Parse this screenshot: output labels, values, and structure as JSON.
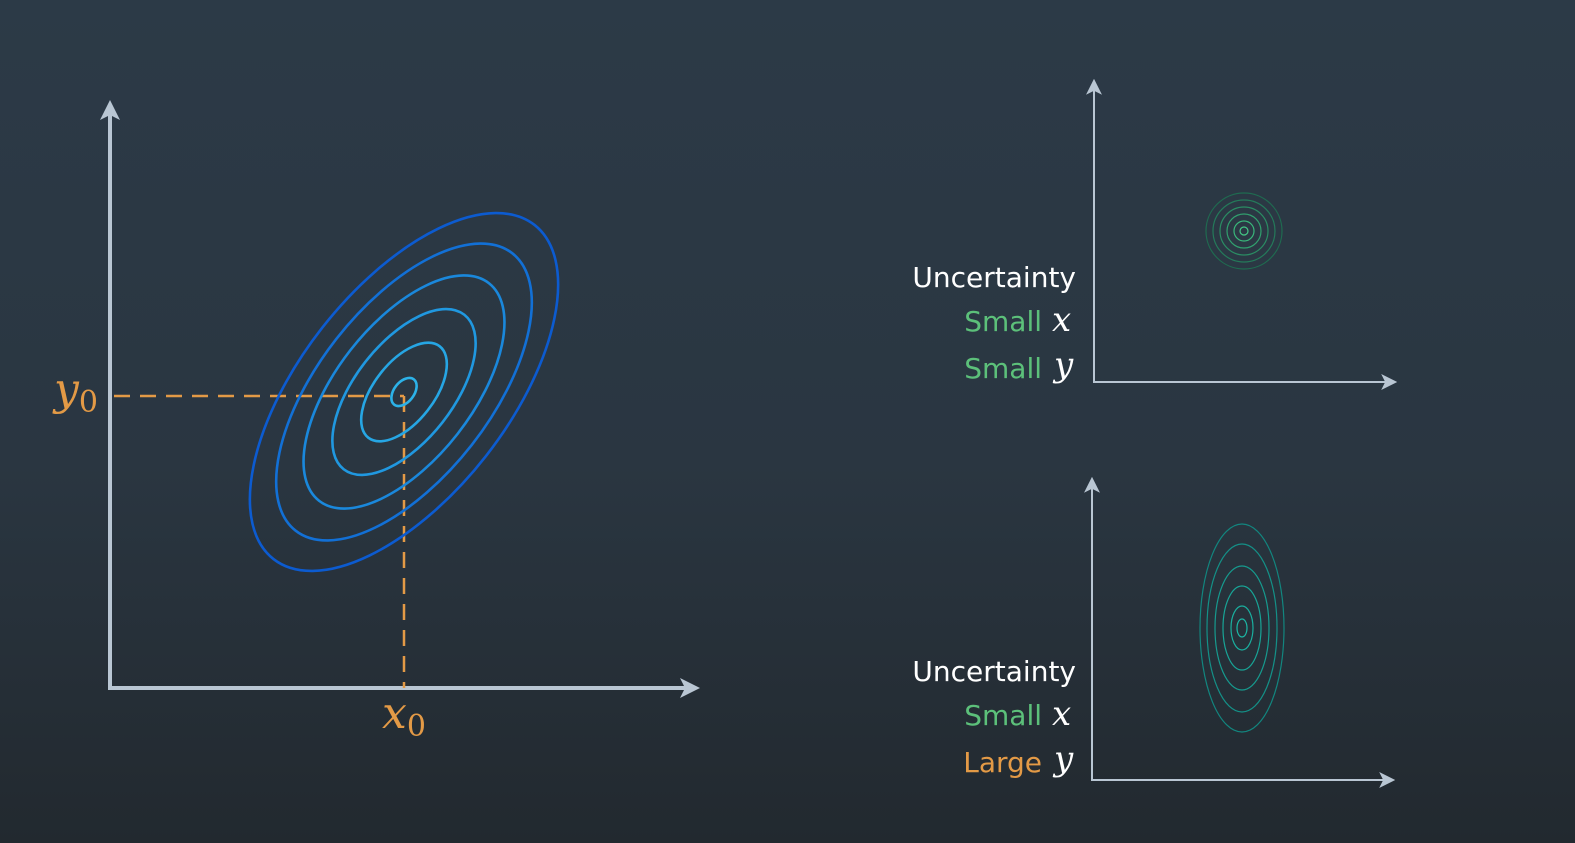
{
  "colors": {
    "axis": "#b9c6d3",
    "orange": "#e39a46",
    "green": "#5cc07a",
    "white": "#ffffff",
    "ellipse_blue": [
      "#0c5bd0",
      "#1270d6",
      "#1a88dc",
      "#2098e0",
      "#26a6e4",
      "#2cb2e8"
    ],
    "ellipse_green": [
      "#1f6b50",
      "#247a5a",
      "#2a8c63",
      "#31a06e",
      "#39b67a",
      "#44ca86"
    ],
    "ellipse_teal": [
      "#12867f",
      "#149087",
      "#169a8e",
      "#18a496",
      "#1aae9e",
      "#1cb8a6"
    ]
  },
  "main_plot": {
    "x_label_base": "x",
    "x_label_sub": "0",
    "y_label_base": "y",
    "y_label_sub": "0",
    "ellipse_count": 6
  },
  "panel_top": {
    "heading": "Uncertainty",
    "row1_size": "Small",
    "row1_var": "x",
    "row2_size": "Small",
    "row2_var": "y",
    "ellipse_count": 6
  },
  "panel_bottom": {
    "heading": "Uncertainty",
    "row1_size": "Small",
    "row1_var": "x",
    "row2_size": "Large",
    "row2_var": "y",
    "ellipse_count": 6
  }
}
